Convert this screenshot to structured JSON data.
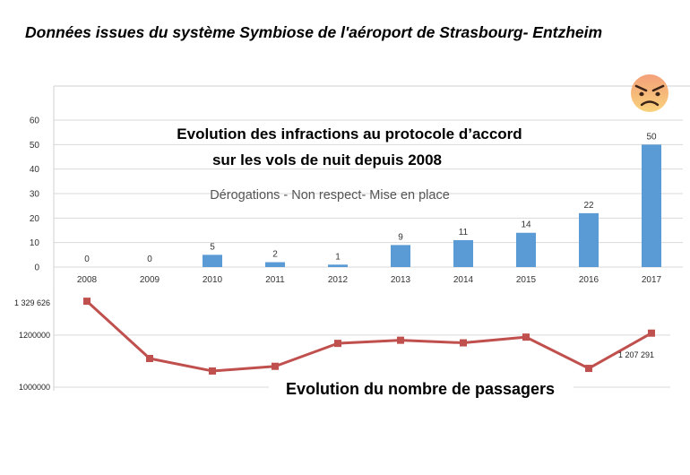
{
  "page": {
    "title": "Données issues du système Symbiose de l'aéroport de Strasbourg- Entzheim",
    "emoji_icon": "angry-face"
  },
  "colors": {
    "bar": "#5b9bd5",
    "line": "#c0504d",
    "grid": "#d9d9d9",
    "emoji_top": "#f4a07a",
    "emoji_bottom": "#f8d27b"
  },
  "chart_data": [
    {
      "type": "bar",
      "title": "Evolution des infractions au protocole d’accord",
      "title_line2": "sur les vols de nuit depuis 2008",
      "subtitle": "Dérogations - Non respect- Mise en place",
      "categories": [
        "2008",
        "2009",
        "2010",
        "2011",
        "2012",
        "2013",
        "2014",
        "2015",
        "2016",
        "2017"
      ],
      "values": [
        0,
        0,
        5,
        2,
        1,
        9,
        11,
        14,
        22,
        50
      ],
      "ylim": [
        0,
        60
      ],
      "yticks": [
        0,
        10,
        20,
        30,
        40,
        50,
        60
      ],
      "grid": true
    },
    {
      "type": "line",
      "title": "Evolution du nombre de passagers",
      "x": [
        "2008",
        "2009",
        "2010",
        "2011",
        "2012",
        "2013",
        "2014",
        "2015",
        "2016",
        "2017"
      ],
      "values": [
        1329626,
        1110000,
        1062000,
        1080000,
        1168000,
        1180000,
        1170000,
        1192000,
        1072000,
        1207291
      ],
      "labels": {
        "first": "1 329 626",
        "last": "1 207 291"
      },
      "ylim": [
        1000000,
        1330000
      ],
      "yticks": [
        1000000,
        1200000
      ],
      "ytick_labels": [
        "1000000",
        "1200000"
      ]
    }
  ]
}
